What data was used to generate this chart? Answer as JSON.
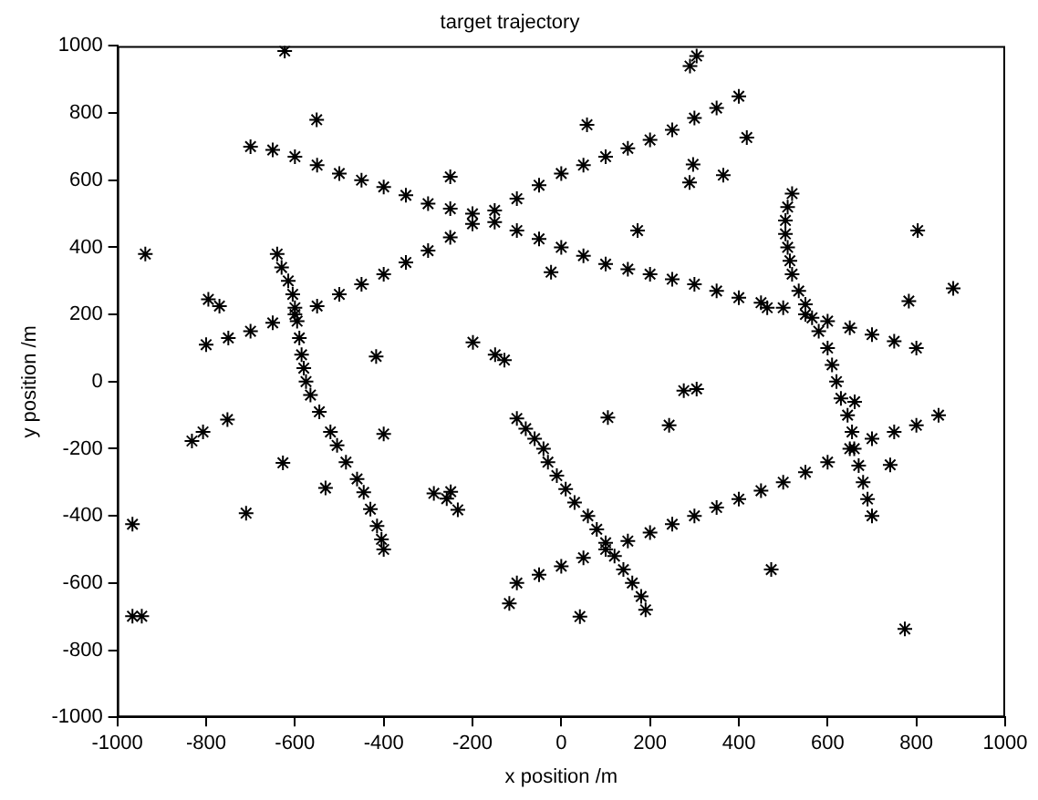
{
  "chart_data": {
    "type": "scatter",
    "title": "target trajectory",
    "xlabel": "x position /m",
    "ylabel": "y position /m",
    "xlim": [
      -1000,
      1000
    ],
    "ylim": [
      -1000,
      1000
    ],
    "xticks": [
      -1000,
      -800,
      -600,
      -400,
      -200,
      0,
      200,
      400,
      600,
      800,
      1000
    ],
    "yticks": [
      -1000,
      -800,
      -600,
      -400,
      -200,
      0,
      200,
      400,
      600,
      800,
      1000
    ],
    "grid": false,
    "legend": false,
    "marker": "cross",
    "series": [
      {
        "color": "#000000",
        "x": [
          -800,
          -750,
          -700,
          -650,
          -600,
          -550,
          -500,
          -450,
          -400,
          -350,
          -300,
          -250,
          -200,
          -150,
          -100,
          -50,
          0,
          50,
          100,
          150,
          200,
          250,
          300,
          350,
          400
        ],
        "values": [
          110,
          130,
          150,
          175,
          200,
          225,
          260,
          290,
          320,
          355,
          390,
          430,
          470,
          510,
          545,
          585,
          620,
          645,
          670,
          695,
          720,
          750,
          785,
          815,
          850
        ]
      },
      {
        "color": "#000000",
        "x": [
          -700,
          -650,
          -600,
          -550,
          -500,
          -450,
          -400,
          -350,
          -300,
          -250,
          -200,
          -150,
          -100,
          -50,
          0,
          50,
          100,
          150,
          200,
          250,
          300,
          350,
          400,
          450,
          500,
          550,
          600,
          650,
          700,
          750,
          800
        ],
        "values": [
          700,
          690,
          670,
          645,
          620,
          600,
          580,
          555,
          530,
          515,
          500,
          475,
          450,
          425,
          400,
          375,
          350,
          335,
          320,
          305,
          290,
          270,
          250,
          235,
          220,
          200,
          180,
          160,
          140,
          120,
          100
        ]
      },
      {
        "color": "#000000",
        "x": [
          -100,
          -50,
          0,
          50,
          100,
          150,
          200,
          250,
          300,
          350,
          400,
          450,
          500,
          550,
          600,
          650,
          700,
          750,
          800,
          850
        ],
        "values": [
          -600,
          -575,
          -550,
          -525,
          -500,
          -475,
          -450,
          -425,
          -400,
          -375,
          -350,
          -325,
          -300,
          -270,
          -240,
          -200,
          -170,
          -150,
          -130,
          -100
        ]
      },
      {
        "color": "#000000",
        "x": [
          -640,
          -630,
          -615,
          -605,
          -600,
          -595,
          -590,
          -585,
          -580,
          -575,
          -565,
          -545,
          -520,
          -505,
          -485,
          -460,
          -445,
          -430,
          -415,
          -405,
          -400
        ],
        "values": [
          380,
          340,
          300,
          260,
          220,
          180,
          130,
          80,
          40,
          0,
          -40,
          -90,
          -150,
          -190,
          -240,
          -290,
          -330,
          -380,
          -430,
          -470,
          -500
        ]
      },
      {
        "color": "#000000",
        "x": [
          -100,
          -80,
          -60,
          -40,
          -30,
          -10,
          10,
          30,
          60,
          80,
          100,
          120,
          140,
          160,
          180,
          190
        ],
        "values": [
          -110,
          -140,
          -170,
          -200,
          -240,
          -280,
          -320,
          -360,
          -400,
          -440,
          -480,
          -520,
          -560,
          -600,
          -640,
          -680
        ]
      },
      {
        "color": "#000000",
        "x": [
          520,
          510,
          505,
          505,
          510,
          515,
          520,
          535,
          550,
          565,
          580,
          600,
          610,
          620,
          630,
          645,
          655,
          660,
          670,
          680,
          690,
          700
        ],
        "values": [
          560,
          520,
          480,
          440,
          400,
          360,
          320,
          270,
          230,
          190,
          150,
          100,
          50,
          0,
          -50,
          -100,
          -150,
          -200,
          -250,
          -300,
          -350,
          -400
        ]
      },
      {
        "color": "#000000",
        "x": [
          -623,
          -551,
          -250,
          -937,
          -795,
          -770,
          -417,
          -199,
          -149,
          -128,
          -23,
          305,
          290,
          58,
          418,
          297,
          289,
          365,
          172,
          803,
          883,
          783,
          464,
          276,
          305,
          105,
          243,
          661,
          741,
          473,
          42,
          774,
          -752,
          -807,
          -832,
          -400,
          -627,
          -531,
          -710,
          -966,
          -966,
          -945,
          -287,
          -249,
          -258,
          -233,
          -117
        ],
        "values": [
          985,
          780,
          610,
          380,
          245,
          225,
          75,
          117,
          80,
          64,
          326,
          970,
          940,
          765,
          727,
          647,
          593,
          615,
          450,
          450,
          278,
          240,
          220,
          -27,
          -22,
          -107,
          -130,
          -60,
          -248,
          -560,
          -700,
          -737,
          -113,
          -150,
          -177,
          -156,
          -242,
          -317,
          -392,
          -425,
          -699,
          -699,
          -333,
          -328,
          -349,
          -382,
          -661
        ]
      }
    ]
  }
}
